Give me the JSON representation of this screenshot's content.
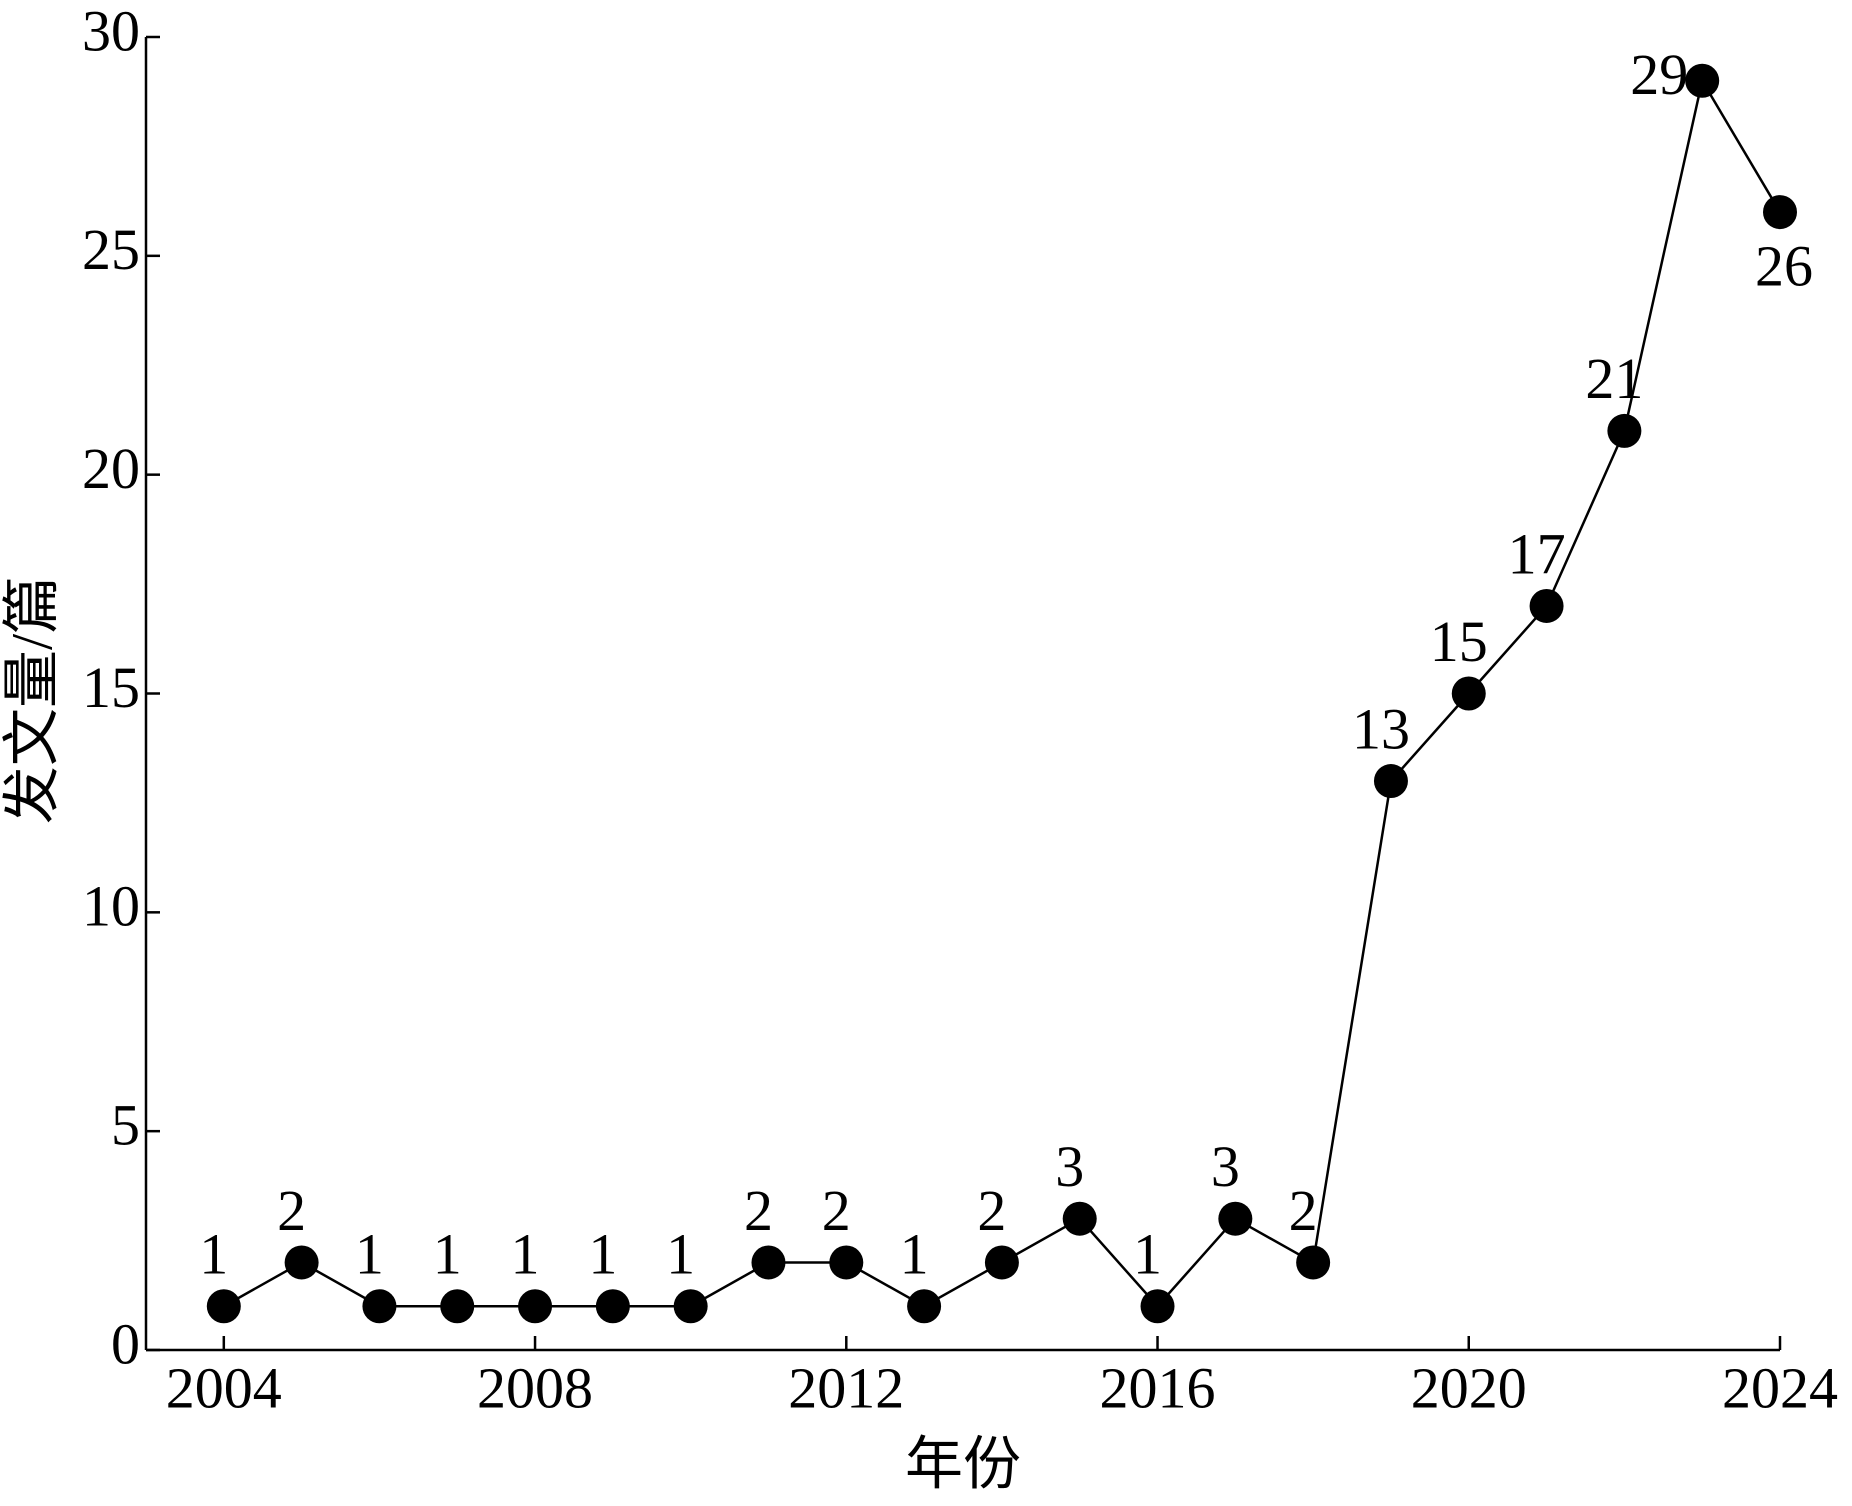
{
  "chart_data": {
    "type": "line",
    "x_label": "年份",
    "y_label": "发文量/篇",
    "x": [
      2004,
      2005,
      2006,
      2007,
      2008,
      2009,
      2010,
      2011,
      2012,
      2013,
      2014,
      2015,
      2016,
      2017,
      2018,
      2019,
      2020,
      2021,
      2022,
      2023,
      2024
    ],
    "series": [
      {
        "color": "#000000",
        "values": [
          1,
          2,
          1,
          1,
          1,
          1,
          1,
          2,
          2,
          1,
          2,
          3,
          1,
          3,
          2,
          13,
          15,
          17,
          21,
          29,
          26
        ]
      }
    ],
    "xlim": [
      2003,
      2024
    ],
    "xticks": [
      2004,
      2008,
      2012,
      2016,
      2020,
      2024
    ],
    "ylim": [
      0,
      30
    ],
    "yticks": [
      0,
      5,
      10,
      15,
      20,
      25,
      30
    ],
    "grid": false,
    "data_labels": true
  }
}
